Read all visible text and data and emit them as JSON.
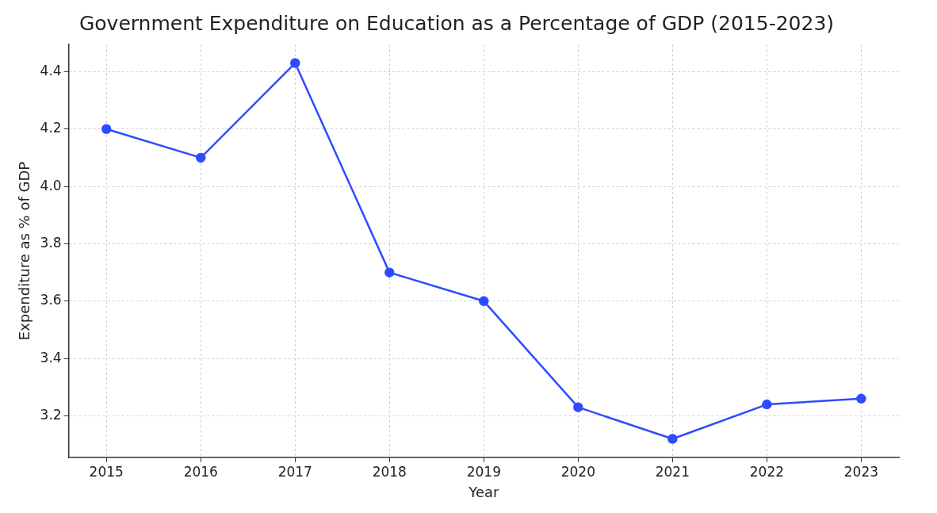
{
  "chart_data": {
    "type": "line",
    "title": "Government Expenditure on Education as a Percentage of GDP (2015-2023)",
    "xlabel": "Year",
    "ylabel": "Expenditure as % of GDP",
    "x": [
      2015,
      2016,
      2017,
      2018,
      2019,
      2020,
      2021,
      2022,
      2023
    ],
    "series": [
      {
        "color": "#2f4bff",
        "values": [
          4.2,
          4.1,
          4.43,
          3.7,
          3.6,
          3.23,
          3.12,
          3.24,
          3.26
        ]
      }
    ],
    "xlim": [
      2014.6,
      2023.4
    ],
    "xticks": [
      2015,
      2016,
      2017,
      2018,
      2019,
      2020,
      2021,
      2022,
      2023
    ],
    "ylim": [
      3.055,
      4.495
    ],
    "yticks": [
      {
        "value": 3.2,
        "label": "3.2"
      },
      {
        "value": 3.4,
        "label": "3.4"
      },
      {
        "value": 3.6,
        "label": "3.6"
      },
      {
        "value": 3.8,
        "label": "3.8"
      },
      {
        "value": 4.0,
        "label": "4.0"
      },
      {
        "value": 4.2,
        "label": "4.2"
      },
      {
        "value": 4.4,
        "label": "4.4"
      }
    ],
    "grid": true,
    "legend": false,
    "marker": "circle",
    "line_style": "solid"
  }
}
